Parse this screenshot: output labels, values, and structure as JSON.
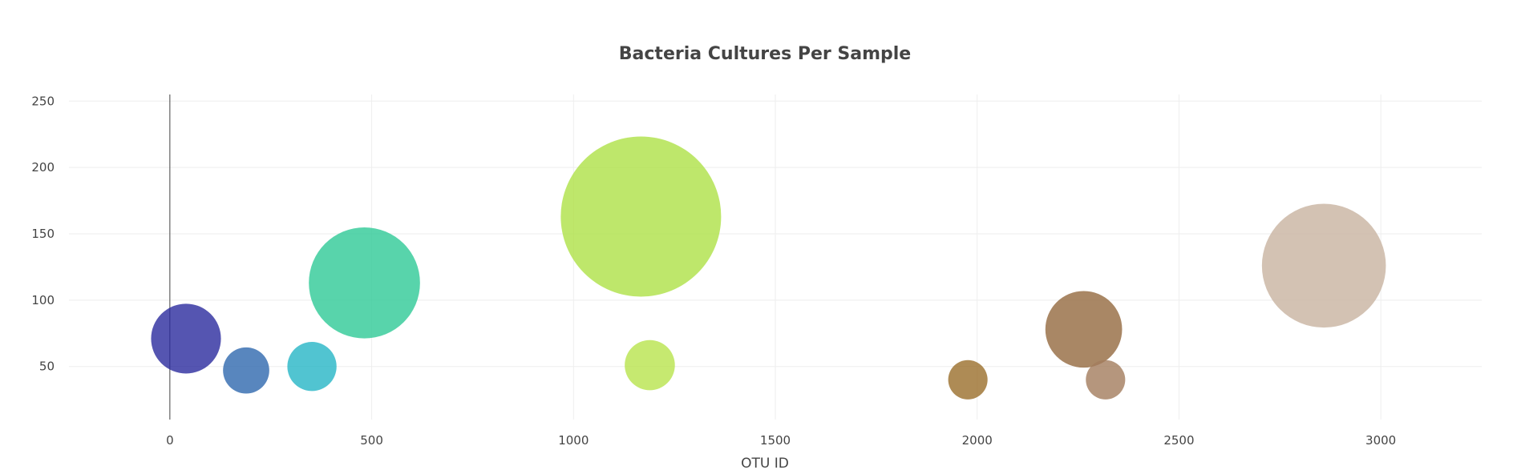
{
  "chart_data": {
    "type": "scatter",
    "subtype": "bubble",
    "title": "Bacteria Cultures Per Sample",
    "xlabel": "OTU ID",
    "ylabel": "",
    "xlim": [
      -250,
      3250
    ],
    "ylim": [
      10,
      255
    ],
    "xticks": [
      0,
      500,
      1000,
      1500,
      2000,
      2500,
      3000
    ],
    "yticks": [
      50,
      100,
      150,
      200,
      250
    ],
    "grid": true,
    "zero_line_x": true,
    "points": [
      {
        "x": 40,
        "y": 71,
        "size": 71,
        "color": "#2a2a9e"
      },
      {
        "x": 189,
        "y": 47,
        "size": 47,
        "color": "#2e68ae"
      },
      {
        "x": 352,
        "y": 50,
        "size": 50,
        "color": "#25b5c5"
      },
      {
        "x": 482,
        "y": 113,
        "size": 113,
        "color": "#2ec996"
      },
      {
        "x": 1167,
        "y": 163,
        "size": 163,
        "color": "#aee146"
      },
      {
        "x": 1189,
        "y": 51,
        "size": 51,
        "color": "#b8e34c"
      },
      {
        "x": 1977,
        "y": 40,
        "size": 40,
        "color": "#9a6e2a"
      },
      {
        "x": 2264,
        "y": 78,
        "size": 78,
        "color": "#94693f"
      },
      {
        "x": 2318,
        "y": 40,
        "size": 40,
        "color": "#a27c5c"
      },
      {
        "x": 2859,
        "y": 126,
        "size": 126,
        "color": "#c8b3a0"
      }
    ]
  }
}
